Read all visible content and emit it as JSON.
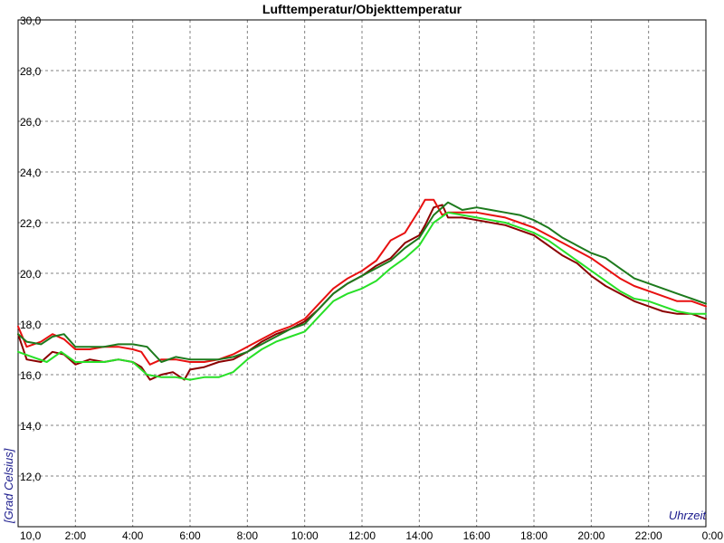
{
  "chart_data": {
    "type": "line",
    "title": "Lufttemperatur/Objekttemperatur",
    "ylabel": "[Grad Celsius]",
    "xlabel": "Uhrzeit",
    "ylim": [
      10,
      30
    ],
    "xlim": [
      0,
      24
    ],
    "y_ticks": [
      10,
      12,
      14,
      16,
      18,
      20,
      22,
      24,
      26,
      28,
      30
    ],
    "y_tick_labels": [
      "10,0",
      "12,0",
      "14,0",
      "16,0",
      "18,0",
      "20,0",
      "22,0",
      "24,0",
      "26,0",
      "28,0",
      "30,0"
    ],
    "x_ticks": [
      2,
      4,
      6,
      8,
      10,
      12,
      14,
      16,
      18,
      20,
      22,
      24
    ],
    "x_tick_labels": [
      "2:00",
      "4:00",
      "6:00",
      "8:00",
      "10:00",
      "12:00",
      "14:00",
      "16:00",
      "18:00",
      "20:00",
      "22:00",
      "0:00"
    ],
    "grid": true,
    "series": [
      {
        "color": "#8b0000",
        "x": [
          0,
          0.3,
          0.8,
          1.2,
          1.6,
          2.0,
          2.5,
          3.0,
          3.5,
          4.0,
          4.3,
          4.6,
          5.0,
          5.4,
          5.8,
          6.0,
          6.5,
          7.0,
          7.5,
          8.0,
          8.5,
          9.0,
          9.5,
          10.0,
          10.5,
          11.0,
          11.5,
          12.0,
          12.5,
          13.0,
          13.5,
          14.0,
          14.2,
          14.5,
          14.8,
          15.0,
          15.5,
          16.0,
          16.5,
          17.0,
          17.5,
          18.0,
          18.5,
          19.0,
          19.5,
          20.0,
          20.5,
          21.0,
          21.5,
          22.0,
          22.5,
          23.0,
          23.5,
          24.0
        ],
        "y": [
          17.6,
          16.6,
          16.5,
          16.9,
          16.8,
          16.4,
          16.6,
          16.5,
          16.6,
          16.5,
          16.3,
          15.8,
          16.0,
          16.1,
          15.8,
          16.2,
          16.3,
          16.5,
          16.6,
          16.9,
          17.3,
          17.6,
          17.8,
          18.1,
          18.6,
          19.2,
          19.6,
          19.9,
          20.3,
          20.6,
          21.2,
          21.5,
          21.9,
          22.6,
          22.7,
          22.2,
          22.2,
          22.1,
          22.0,
          21.9,
          21.7,
          21.5,
          21.1,
          20.7,
          20.4,
          19.9,
          19.5,
          19.2,
          18.9,
          18.7,
          18.5,
          18.4,
          18.4,
          18.2
        ]
      },
      {
        "color": "#e81010",
        "x": [
          0,
          0.3,
          0.8,
          1.2,
          1.6,
          2.0,
          2.5,
          3.0,
          3.5,
          4.0,
          4.3,
          4.6,
          5.0,
          5.5,
          6.0,
          6.5,
          7.0,
          7.5,
          8.0,
          8.5,
          9.0,
          9.5,
          10.0,
          10.5,
          11.0,
          11.5,
          12.0,
          12.5,
          13.0,
          13.5,
          14.0,
          14.2,
          14.5,
          14.8,
          15.0,
          15.5,
          16.0,
          16.5,
          17.0,
          17.5,
          18.0,
          18.5,
          19.0,
          19.5,
          20.0,
          20.5,
          21.0,
          21.5,
          22.0,
          22.5,
          23.0,
          23.5,
          24.0
        ],
        "y": [
          17.9,
          17.1,
          17.3,
          17.6,
          17.4,
          17.0,
          17.0,
          17.1,
          17.1,
          17.0,
          16.9,
          16.4,
          16.6,
          16.6,
          16.5,
          16.5,
          16.6,
          16.8,
          17.1,
          17.4,
          17.7,
          17.9,
          18.2,
          18.8,
          19.4,
          19.8,
          20.1,
          20.5,
          21.3,
          21.6,
          22.5,
          22.9,
          22.9,
          22.3,
          22.4,
          22.4,
          22.4,
          22.3,
          22.2,
          22.0,
          21.8,
          21.5,
          21.2,
          20.9,
          20.6,
          20.2,
          19.8,
          19.5,
          19.3,
          19.1,
          18.9,
          18.9,
          18.7
        ]
      },
      {
        "color": "#1d7a1d",
        "x": [
          0,
          0.3,
          0.8,
          1.2,
          1.6,
          2.0,
          2.5,
          3.0,
          3.5,
          4.0,
          4.5,
          5.0,
          5.5,
          6.0,
          6.5,
          7.0,
          7.5,
          8.0,
          8.5,
          9.0,
          9.5,
          10.0,
          10.5,
          11.0,
          11.5,
          12.0,
          12.5,
          13.0,
          13.5,
          14.0,
          14.5,
          15.0,
          15.5,
          16.0,
          16.5,
          17.0,
          17.5,
          18.0,
          18.5,
          19.0,
          19.5,
          20.0,
          20.5,
          21.0,
          21.5,
          22.0,
          22.5,
          23.0,
          23.5,
          24.0
        ],
        "y": [
          17.6,
          17.3,
          17.2,
          17.5,
          17.6,
          17.1,
          17.1,
          17.1,
          17.2,
          17.2,
          17.1,
          16.5,
          16.7,
          16.6,
          16.6,
          16.6,
          16.7,
          16.9,
          17.2,
          17.5,
          17.8,
          18.0,
          18.6,
          19.2,
          19.6,
          19.9,
          20.2,
          20.5,
          21.0,
          21.4,
          22.3,
          22.8,
          22.5,
          22.6,
          22.5,
          22.4,
          22.3,
          22.1,
          21.8,
          21.4,
          21.1,
          20.8,
          20.6,
          20.2,
          19.8,
          19.6,
          19.4,
          19.2,
          19.0,
          18.8
        ]
      },
      {
        "color": "#27e027",
        "x": [
          0,
          0.5,
          1.0,
          1.5,
          2.0,
          2.5,
          3.0,
          3.5,
          4.0,
          4.5,
          5.0,
          5.5,
          6.0,
          6.5,
          7.0,
          7.5,
          8.0,
          8.5,
          9.0,
          9.5,
          10.0,
          10.5,
          11.0,
          11.5,
          12.0,
          12.5,
          13.0,
          13.5,
          14.0,
          14.5,
          15.0,
          15.5,
          16.0,
          16.5,
          17.0,
          17.5,
          18.0,
          18.5,
          19.0,
          19.5,
          20.0,
          20.5,
          21.0,
          21.5,
          22.0,
          22.5,
          23.0,
          23.5,
          24.0
        ],
        "y": [
          16.9,
          16.7,
          16.5,
          16.9,
          16.5,
          16.5,
          16.5,
          16.6,
          16.5,
          16.0,
          15.9,
          15.9,
          15.8,
          15.9,
          15.9,
          16.1,
          16.6,
          17.0,
          17.3,
          17.5,
          17.7,
          18.3,
          18.9,
          19.2,
          19.4,
          19.7,
          20.2,
          20.6,
          21.1,
          22.0,
          22.4,
          22.3,
          22.2,
          22.1,
          22.0,
          21.8,
          21.6,
          21.3,
          20.9,
          20.5,
          20.1,
          19.7,
          19.3,
          19.0,
          18.9,
          18.7,
          18.5,
          18.4,
          18.4
        ]
      }
    ]
  }
}
